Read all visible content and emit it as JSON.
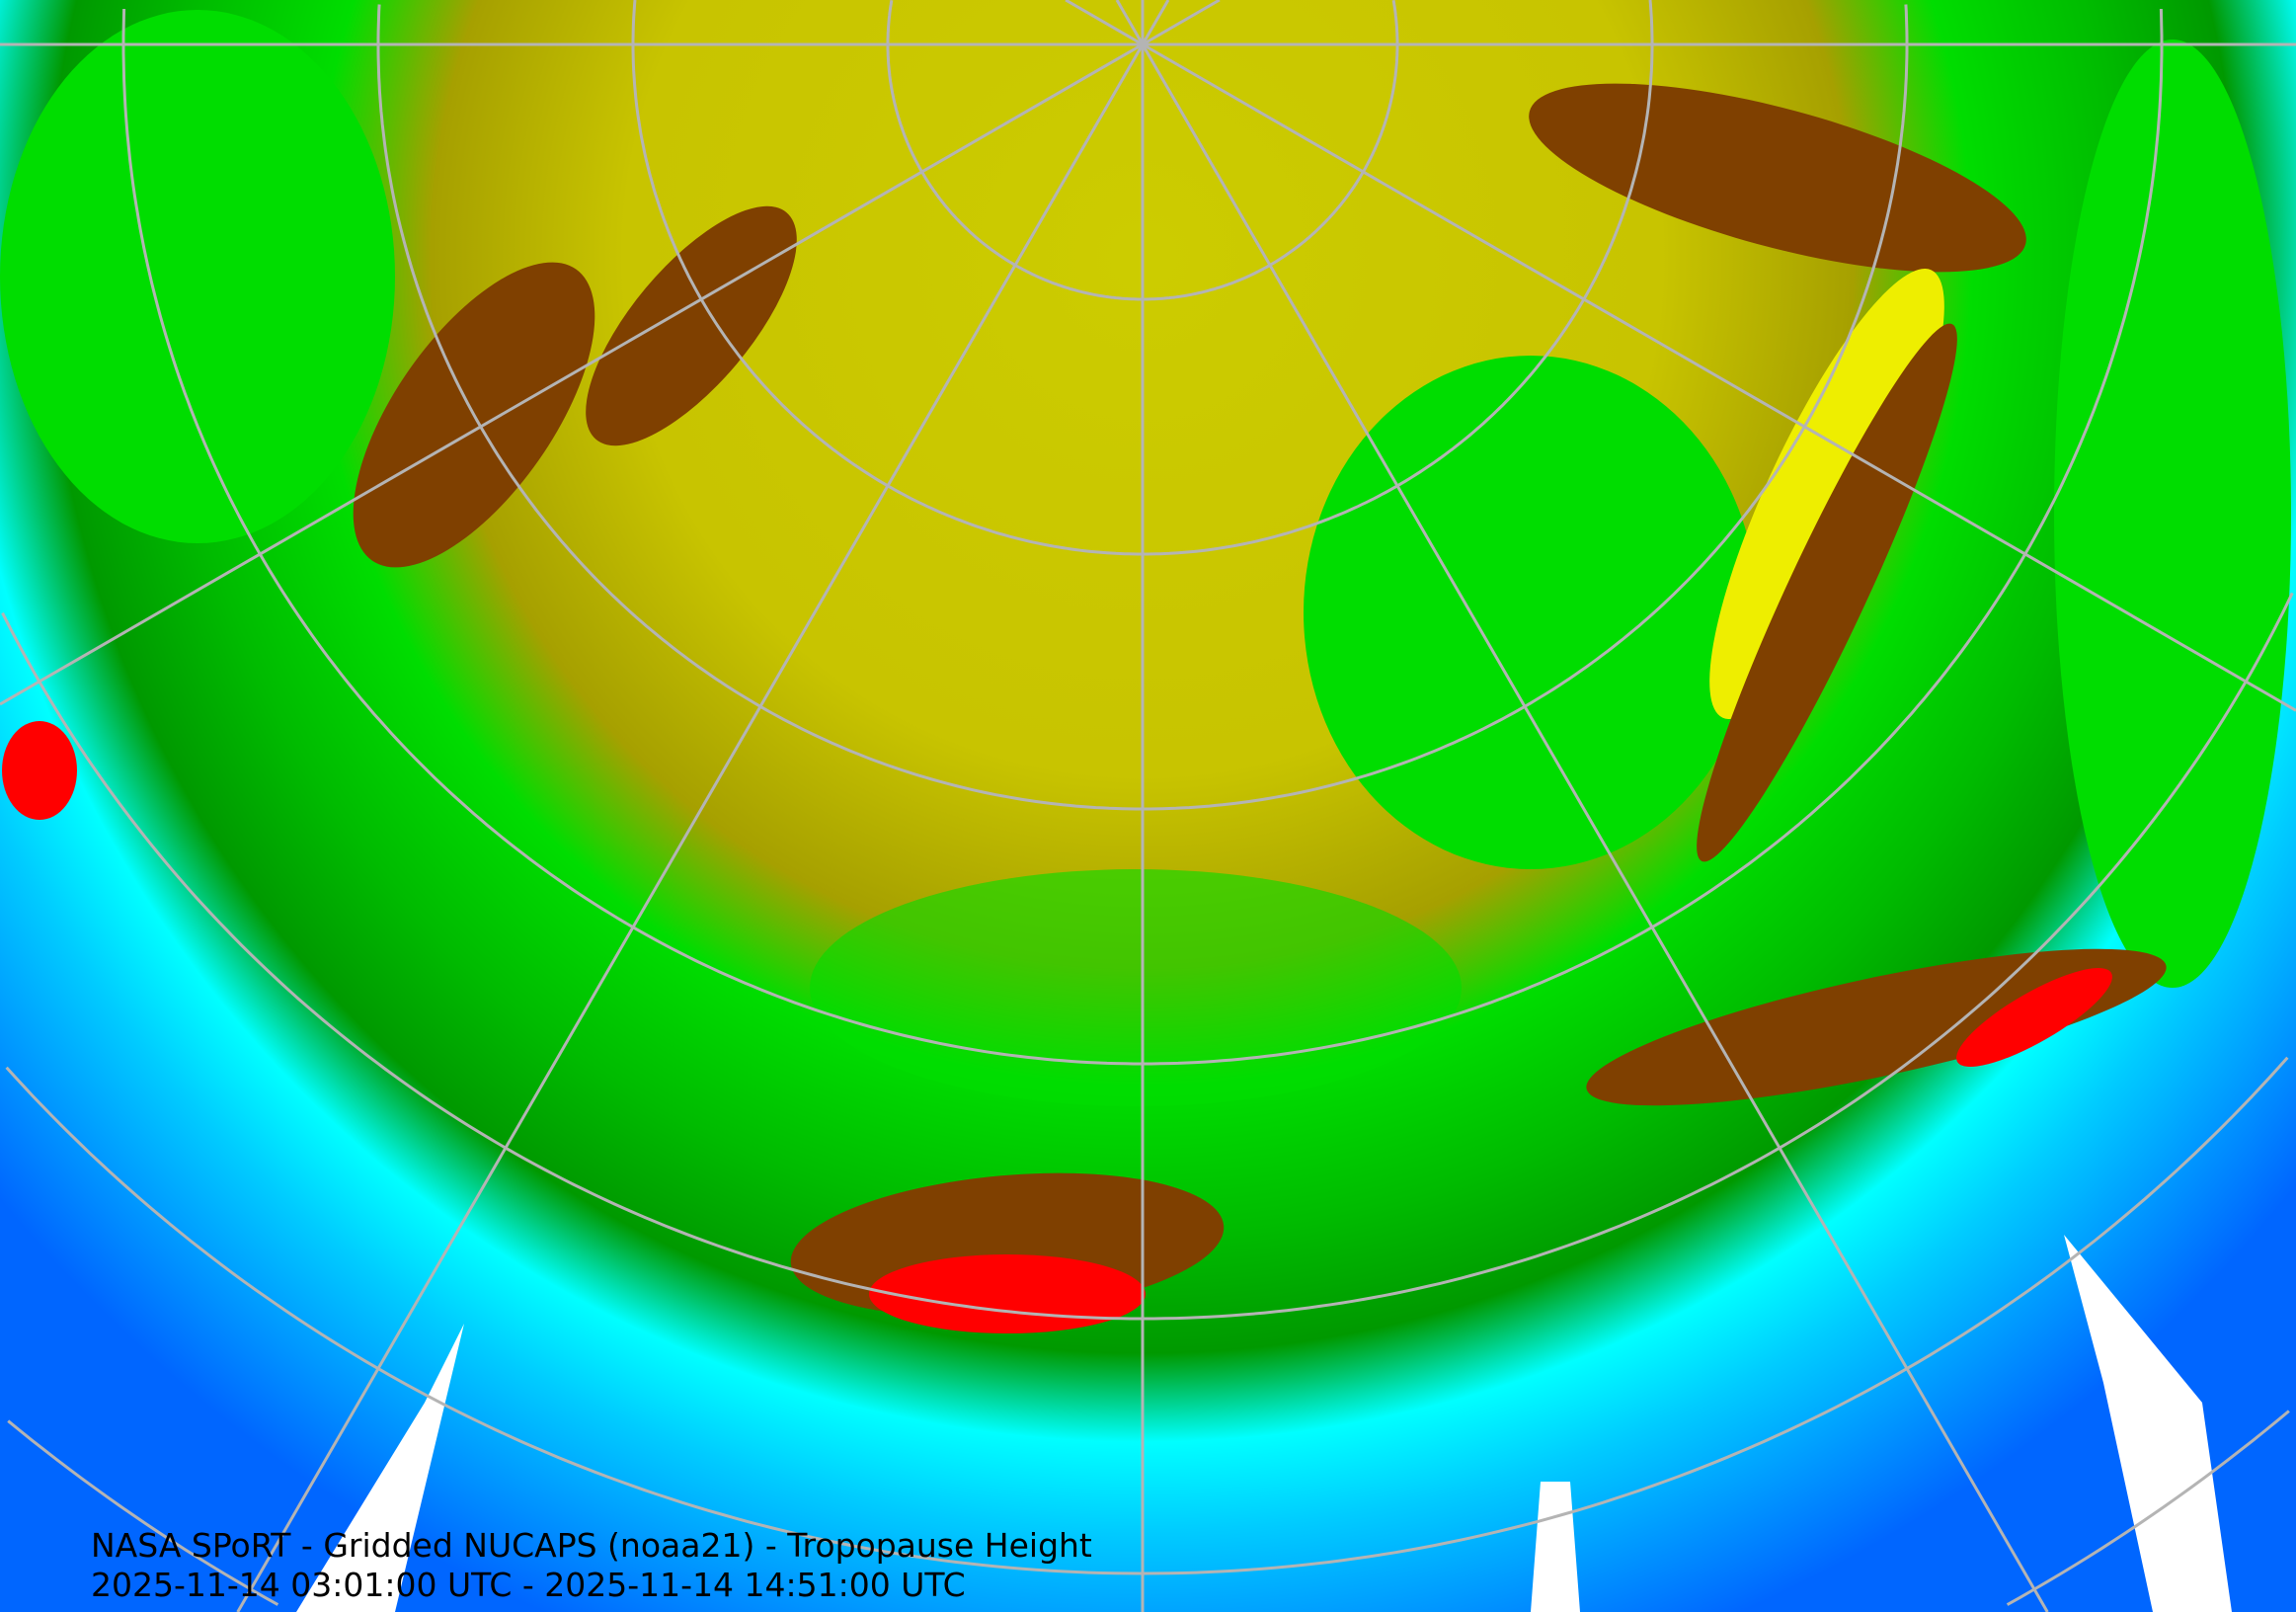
{
  "title": "NASA SPoRT - Gridded NUCAPS (noaa21) - Tropopause Height",
  "time_range": "2025-11-14 03:01:00 UTC - 2025-11-14 14:51:00 UTC",
  "projection": "north polar stereographic",
  "graticule_color": "#b4b4b4",
  "field_colors": [
    "#0066ff",
    "#00ccff",
    "#00ffff",
    "#009900",
    "#00ee00",
    "#8c8c00",
    "#cccc00",
    "#eeee00",
    "#7f4000",
    "#e67300",
    "#ff0000",
    "#ffffff"
  ]
}
